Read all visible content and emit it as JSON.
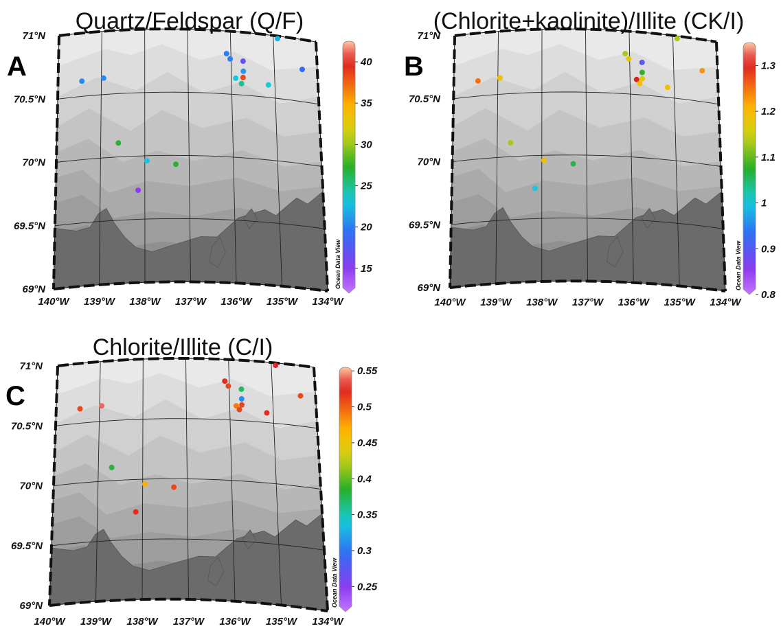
{
  "attribution": "Ocean Data View",
  "land_color": "#6b6b6b",
  "bathymetry_colors": [
    "#e9e9e9",
    "#dddddd",
    "#d0d0d0",
    "#c4c4c4",
    "#b7b7b7",
    "#aaaaaa",
    "#9d9d9d",
    "#909090",
    "#858585"
  ],
  "lat_labels": [
    "71°N",
    "70.5°N",
    "70°N",
    "69.5°N",
    "69°N"
  ],
  "lon_labels": [
    "140°W",
    "139°W",
    "138°W",
    "137°W",
    "136°W",
    "135°W",
    "134°W"
  ],
  "panels": [
    {
      "label": "A",
      "title": "Quartz/Feldspar (Q/F)",
      "colorbar": {
        "min": 12,
        "max": 42.5,
        "ticks": [
          "40",
          "35",
          "30",
          "25",
          "20",
          "15"
        ],
        "tick_values": [
          40,
          35,
          30,
          25,
          20,
          15
        ]
      },
      "stations": [
        {
          "lon": -139.45,
          "lat": 70.62,
          "value": 20.5
        },
        {
          "lon": -138.95,
          "lat": 70.63,
          "value": 20.5
        },
        {
          "lon": -138.6,
          "lat": 70.11,
          "value": 27
        },
        {
          "lon": -137.95,
          "lat": 69.96,
          "value": 23
        },
        {
          "lon": -138.15,
          "lat": 69.73,
          "value": 15
        },
        {
          "lon": -137.3,
          "lat": 69.93,
          "value": 27
        },
        {
          "lon": -136.1,
          "lat": 70.82,
          "value": 20
        },
        {
          "lon": -136.02,
          "lat": 70.78,
          "value": 20
        },
        {
          "lon": -135.72,
          "lat": 70.77,
          "value": 17
        },
        {
          "lon": -135.72,
          "lat": 70.69,
          "value": 21
        },
        {
          "lon": -135.9,
          "lat": 70.63,
          "value": 23
        },
        {
          "lon": -135.73,
          "lat": 70.64,
          "value": 38.5
        },
        {
          "lon": -135.77,
          "lat": 70.59,
          "value": 25
        },
        {
          "lon": -135.15,
          "lat": 70.6,
          "value": 23.5
        },
        {
          "lon": -134.9,
          "lat": 70.98,
          "value": 22
        },
        {
          "lon": -134.35,
          "lat": 70.76,
          "value": 19
        }
      ]
    },
    {
      "label": "B",
      "title": "(Chlorite+kaolinite)/Illite (CK/I)",
      "colorbar": {
        "min": 0.8,
        "max": 1.35,
        "ticks": [
          "1.3",
          "1.2",
          "1.1",
          "1",
          "0.9",
          "0.8"
        ],
        "tick_values": [
          1.3,
          1.2,
          1.1,
          1.0,
          0.9,
          0.8
        ]
      },
      "stations": [
        {
          "lon": -139.45,
          "lat": 70.62,
          "value": 1.25
        },
        {
          "lon": -138.95,
          "lat": 70.63,
          "value": 1.19
        },
        {
          "lon": -138.7,
          "lat": 70.11,
          "value": 1.13
        },
        {
          "lon": -137.95,
          "lat": 69.96,
          "value": 1.19
        },
        {
          "lon": -138.15,
          "lat": 69.74,
          "value": 1.0
        },
        {
          "lon": -137.3,
          "lat": 69.93,
          "value": 1.06
        },
        {
          "lon": -136.1,
          "lat": 70.82,
          "value": 1.13
        },
        {
          "lon": -136.02,
          "lat": 70.78,
          "value": 1.17
        },
        {
          "lon": -135.72,
          "lat": 70.76,
          "value": 0.9
        },
        {
          "lon": -135.72,
          "lat": 70.68,
          "value": 1.08
        },
        {
          "lon": -135.85,
          "lat": 70.62,
          "value": 1.3
        },
        {
          "lon": -135.72,
          "lat": 70.63,
          "value": 1.17
        },
        {
          "lon": -135.78,
          "lat": 70.59,
          "value": 1.19
        },
        {
          "lon": -135.15,
          "lat": 70.58,
          "value": 1.19
        },
        {
          "lon": -134.9,
          "lat": 70.98,
          "value": 1.13
        },
        {
          "lon": -134.35,
          "lat": 70.75,
          "value": 1.23
        }
      ]
    },
    {
      "label": "C",
      "title": "Chlorite/Illite (C/I)",
      "colorbar": {
        "min": 0.215,
        "max": 0.555,
        "ticks": [
          "0.55",
          "0.5",
          "0.45",
          "0.4",
          "0.35",
          "0.3",
          "0.25"
        ],
        "tick_values": [
          0.55,
          0.5,
          0.45,
          0.4,
          0.35,
          0.3,
          0.25
        ]
      },
      "stations": [
        {
          "lon": -139.45,
          "lat": 70.62,
          "value": 0.51
        },
        {
          "lon": -138.95,
          "lat": 70.63,
          "value": 0.54
        },
        {
          "lon": -138.7,
          "lat": 70.11,
          "value": 0.38
        },
        {
          "lon": -137.95,
          "lat": 69.96,
          "value": 0.47
        },
        {
          "lon": -138.15,
          "lat": 69.73,
          "value": 0.52
        },
        {
          "lon": -137.3,
          "lat": 69.93,
          "value": 0.51
        },
        {
          "lon": -136.1,
          "lat": 70.82,
          "value": 0.52
        },
        {
          "lon": -136.02,
          "lat": 70.78,
          "value": 0.51
        },
        {
          "lon": -135.72,
          "lat": 70.76,
          "value": 0.37
        },
        {
          "lon": -135.72,
          "lat": 70.68,
          "value": 0.31
        },
        {
          "lon": -135.85,
          "lat": 70.62,
          "value": 0.49
        },
        {
          "lon": -135.72,
          "lat": 70.63,
          "value": 0.51
        },
        {
          "lon": -135.78,
          "lat": 70.59,
          "value": 0.51
        },
        {
          "lon": -135.15,
          "lat": 70.58,
          "value": 0.52
        },
        {
          "lon": -134.9,
          "lat": 70.98,
          "value": 0.53
        },
        {
          "lon": -134.35,
          "lat": 70.75,
          "value": 0.51
        }
      ]
    }
  ]
}
